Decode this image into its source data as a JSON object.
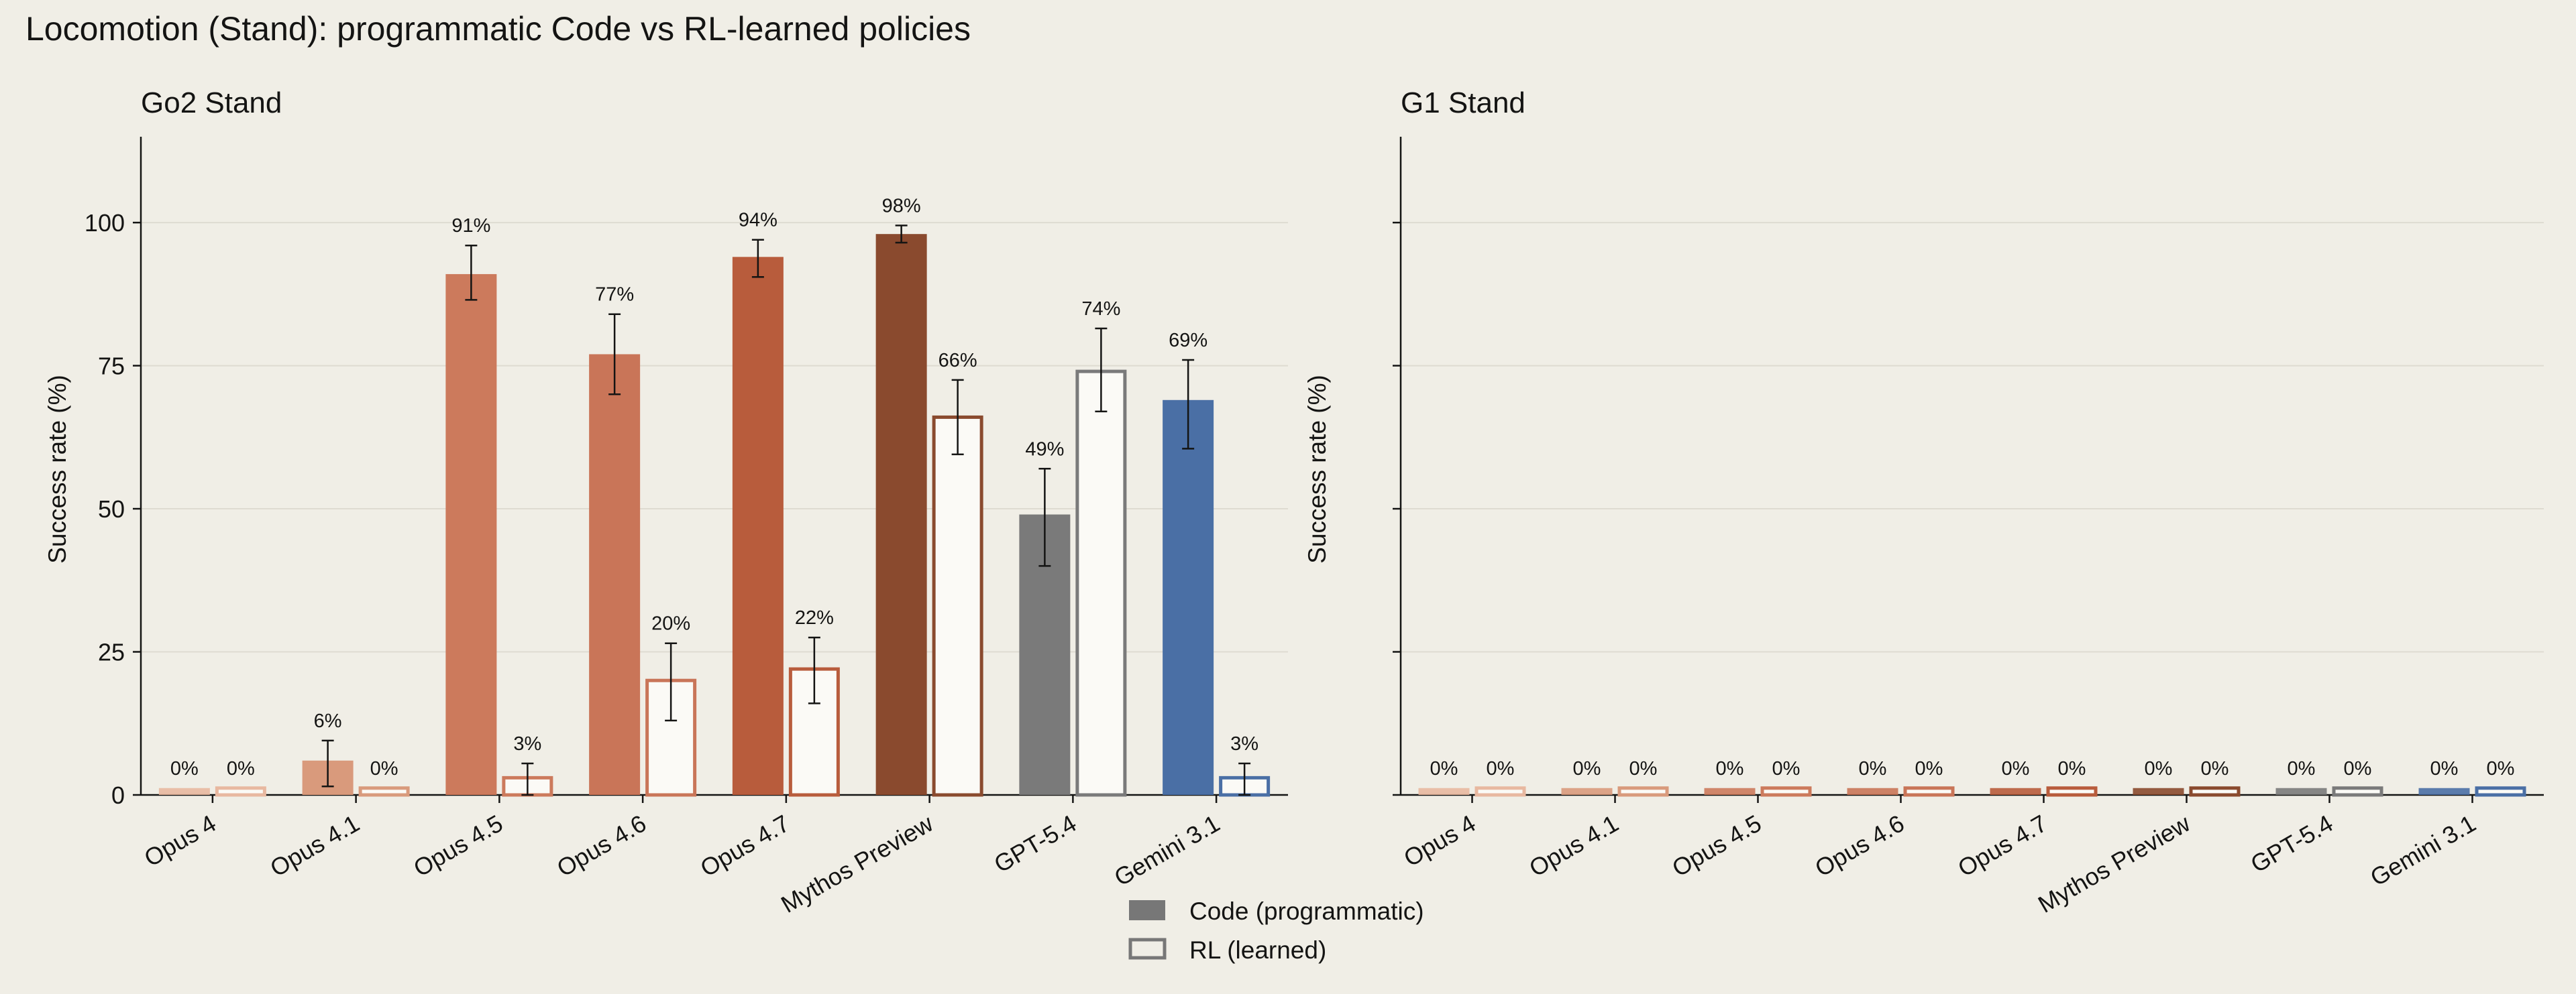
{
  "title": "Locomotion (Stand): programmatic Code vs RL-learned policies",
  "legend": {
    "code_label": "Code (programmatic)",
    "rl_label": "RL (learned)",
    "code_swatch_color": "#777777",
    "rl_swatch_color": "#777777"
  },
  "chart_data": [
    {
      "type": "bar",
      "title": "Go2 Stand",
      "ylabel": "Success rate (%)",
      "xlabel": "",
      "ylim": [
        0,
        115
      ],
      "yticks": [
        0,
        25,
        50,
        75,
        100
      ],
      "grid": true,
      "categories": [
        "Opus 4",
        "Opus 4.1",
        "Opus 4.5",
        "Opus 4.6",
        "Opus 4.7",
        "Mythos Preview",
        "GPT-5.4",
        "Gemini 3.1"
      ],
      "colors": [
        "#e8b8a0",
        "#d99a7c",
        "#cc7a5c",
        "#c97558",
        "#b85c3c",
        "#8a4a2e",
        "#7a7a7a",
        "#4a6fa5"
      ],
      "series": [
        {
          "name": "Code (programmatic)",
          "style": "filled",
          "values": [
            0,
            6,
            91,
            77,
            94,
            98,
            49,
            69
          ],
          "labels": [
            "0%",
            "6%",
            "91%",
            "77%",
            "94%",
            "98%",
            "49%",
            "69%"
          ],
          "err_low": [
            null,
            1.5,
            86.5,
            70,
            90.5,
            96.5,
            40,
            60.5
          ],
          "err_high": [
            null,
            9.5,
            96,
            84,
            97,
            99.5,
            57,
            76
          ]
        },
        {
          "name": "RL (learned)",
          "style": "outline",
          "values": [
            0,
            0,
            3,
            20,
            22,
            66,
            74,
            3
          ],
          "labels": [
            "0%",
            "0%",
            "3%",
            "20%",
            "22%",
            "66%",
            "74%",
            "3%"
          ],
          "err_low": [
            null,
            null,
            0,
            13,
            16,
            59.5,
            67,
            0
          ],
          "err_high": [
            null,
            null,
            5.5,
            26.5,
            27.5,
            72.5,
            81.5,
            5.5
          ]
        }
      ]
    },
    {
      "type": "bar",
      "title": "G1 Stand",
      "ylabel": "Success rate (%)",
      "xlabel": "",
      "ylim": [
        0,
        115
      ],
      "yticks": [
        0,
        25,
        50,
        75,
        100
      ],
      "grid": true,
      "categories": [
        "Opus 4",
        "Opus 4.1",
        "Opus 4.5",
        "Opus 4.6",
        "Opus 4.7",
        "Mythos Preview",
        "GPT-5.4",
        "Gemini 3.1"
      ],
      "colors": [
        "#e8b8a0",
        "#d99a7c",
        "#cc7a5c",
        "#c97558",
        "#b85c3c",
        "#8a4a2e",
        "#7a7a7a",
        "#4a6fa5"
      ],
      "series": [
        {
          "name": "Code (programmatic)",
          "style": "filled",
          "values": [
            0,
            0,
            0,
            0,
            0,
            0,
            0,
            0
          ],
          "labels": [
            "0%",
            "0%",
            "0%",
            "0%",
            "0%",
            "0%",
            "0%",
            "0%"
          ],
          "err_low": [
            null,
            null,
            null,
            null,
            null,
            null,
            null,
            null
          ],
          "err_high": [
            null,
            null,
            null,
            null,
            null,
            null,
            null,
            null
          ]
        },
        {
          "name": "RL (learned)",
          "style": "outline",
          "values": [
            0,
            0,
            0,
            0,
            0,
            0,
            0,
            0
          ],
          "labels": [
            "0%",
            "0%",
            "0%",
            "0%",
            "0%",
            "0%",
            "0%",
            "0%"
          ],
          "err_low": [
            null,
            null,
            null,
            null,
            null,
            null,
            null,
            null
          ],
          "err_high": [
            null,
            null,
            null,
            null,
            null,
            null,
            null,
            null
          ]
        }
      ]
    }
  ]
}
